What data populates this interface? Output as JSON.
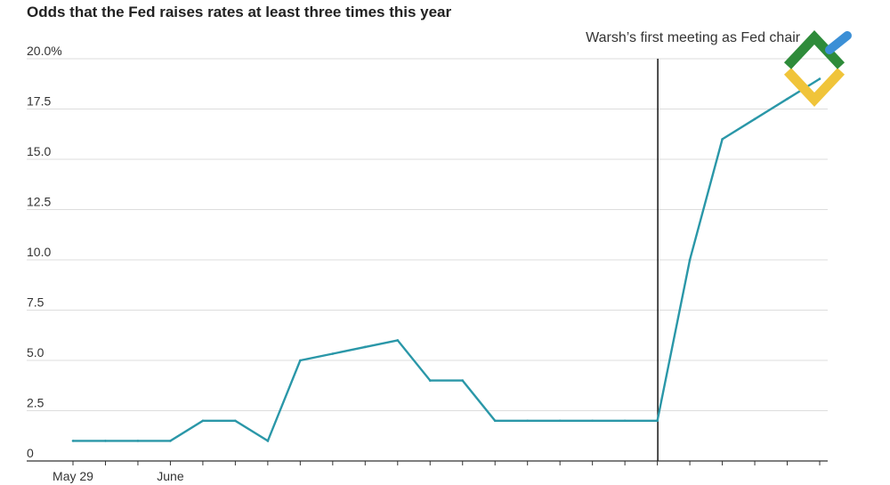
{
  "chart_data": {
    "type": "line",
    "title": "Odds that the Fed raises rates at least three times this year",
    "xlabel": "",
    "ylabel": "",
    "ylim": [
      0,
      20
    ],
    "grid": true,
    "y_ticks": [
      0,
      2.5,
      5,
      7.5,
      10,
      12.5,
      15,
      17.5,
      20
    ],
    "y_tick_labels": [
      "0",
      "2.5",
      "5.0",
      "7.5",
      "10.0",
      "12.5",
      "15.0",
      "17.5",
      "20.0%"
    ],
    "x_tick_labels": [
      {
        "label": "May 29",
        "index": 0
      },
      {
        "label": "June",
        "index": 3
      }
    ],
    "series": [
      {
        "color": "#2a97a8",
        "values": [
          1,
          1,
          1,
          1,
          2,
          2,
          1,
          5,
          5.33,
          5.67,
          6,
          4,
          4,
          2,
          2,
          2,
          2,
          2,
          2,
          10,
          16,
          17,
          18,
          19
        ]
      }
    ],
    "annotations": [
      {
        "text": "Warsh’s first meeting as Fed chair",
        "x_index": 18
      }
    ]
  },
  "colors": {
    "line": "#2a97a8",
    "grid": "#dddddd",
    "axis": "#333333",
    "annotation_line": "#222222"
  },
  "watermark": {
    "name": "logo-watermark",
    "colors": [
      "#2e8b3a",
      "#3b8fd6",
      "#f0c43a"
    ]
  }
}
